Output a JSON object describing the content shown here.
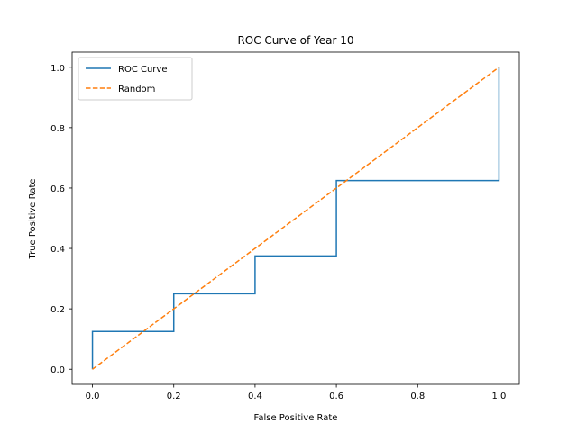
{
  "chart_data": {
    "type": "line",
    "title": "ROC Curve of Year 10",
    "xlabel": "False Positive Rate",
    "ylabel": "True Positive Rate",
    "xlim": [
      -0.05,
      1.05
    ],
    "ylim": [
      -0.05,
      1.05
    ],
    "xticks": [
      0.0,
      0.2,
      0.4,
      0.6,
      0.8,
      1.0
    ],
    "yticks": [
      0.0,
      0.2,
      0.4,
      0.6,
      0.8,
      1.0
    ],
    "xtick_labels": [
      "0.0",
      "0.2",
      "0.4",
      "0.6",
      "0.8",
      "1.0"
    ],
    "ytick_labels": [
      "0.0",
      "0.2",
      "0.4",
      "0.6",
      "0.8",
      "1.0"
    ],
    "grid": false,
    "legend_position": "top-left",
    "series": [
      {
        "name": "ROC Curve",
        "color": "#1f77b4",
        "style": "solid",
        "x": [
          0.0,
          0.0,
          0.2,
          0.2,
          0.4,
          0.4,
          0.6,
          0.6,
          1.0,
          1.0
        ],
        "y": [
          0.0,
          0.125,
          0.125,
          0.25,
          0.25,
          0.375,
          0.375,
          0.625,
          0.625,
          1.0
        ]
      },
      {
        "name": "Random",
        "color": "#ff7f0e",
        "style": "dashed",
        "x": [
          0.0,
          1.0
        ],
        "y": [
          0.0,
          1.0
        ]
      }
    ]
  }
}
